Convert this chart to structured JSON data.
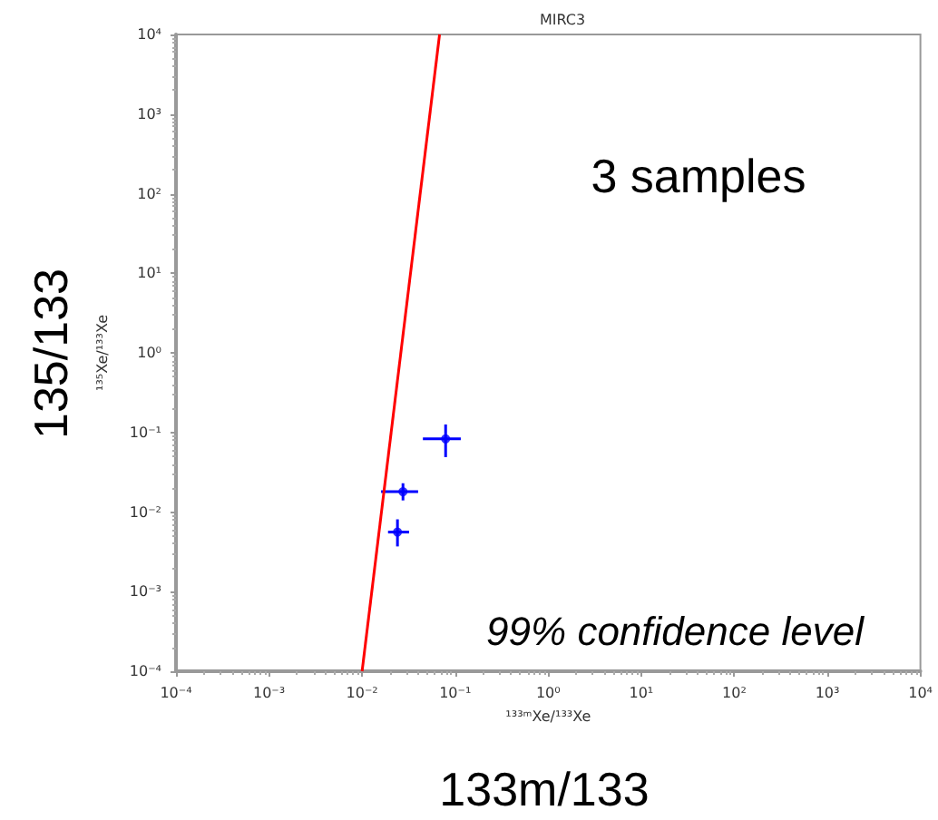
{
  "chart_data": {
    "type": "scatter",
    "title": "MIRC3",
    "xlabel": "¹³³ᵐXe/¹³³Xe",
    "ylabel": "¹³⁵Xe/¹³³Xe",
    "log": "xy",
    "grid": false,
    "marker": "circle",
    "xlim": [
      0.0001,
      10000
    ],
    "ylim": [
      0.0001,
      10000
    ],
    "xticks": [
      {
        "value": 0.0001,
        "label": "10⁻⁴"
      },
      {
        "value": 0.001,
        "label": "10⁻³"
      },
      {
        "value": 0.01,
        "label": "10⁻²"
      },
      {
        "value": 0.1,
        "label": "10⁻¹"
      },
      {
        "value": 1,
        "label": "10⁰"
      },
      {
        "value": 10,
        "label": "10¹"
      },
      {
        "value": 100,
        "label": "10²"
      },
      {
        "value": 1000,
        "label": "10³"
      },
      {
        "value": 10000,
        "label": "10⁴"
      }
    ],
    "yticks": [
      {
        "value": 0.0001,
        "label": "10⁻⁴"
      },
      {
        "value": 0.001,
        "label": "10⁻³"
      },
      {
        "value": 0.01,
        "label": "10⁻²"
      },
      {
        "value": 0.1,
        "label": "10⁻¹"
      },
      {
        "value": 1,
        "label": "10⁰"
      },
      {
        "value": 10,
        "label": "10¹"
      },
      {
        "value": 100,
        "label": "10²"
      },
      {
        "value": 1000,
        "label": "10³"
      },
      {
        "value": 10000,
        "label": "10⁴"
      }
    ],
    "series": [
      {
        "type": "line",
        "color": "#ff0000",
        "marker": "none",
        "x": [
          0.01,
          0.068
        ],
        "values": [
          0.0001,
          10000
        ]
      },
      {
        "color": "#0000ff",
        "x": [
          0.079,
          0.0275,
          0.024
        ],
        "values": [
          0.083,
          0.018,
          0.0056
        ],
        "errors": [
          [
            0.049,
            0.126
          ],
          [
            0.014,
            0.023
          ],
          [
            0.0037,
            0.0081
          ]
        ],
        "xerrors": [
          [
            0.045,
            0.115
          ],
          [
            0.016,
            0.04
          ],
          [
            0.019,
            0.032
          ]
        ]
      }
    ],
    "annotations": [
      "3 samples",
      "99% confidence level",
      "135/133",
      "133m/133"
    ]
  }
}
